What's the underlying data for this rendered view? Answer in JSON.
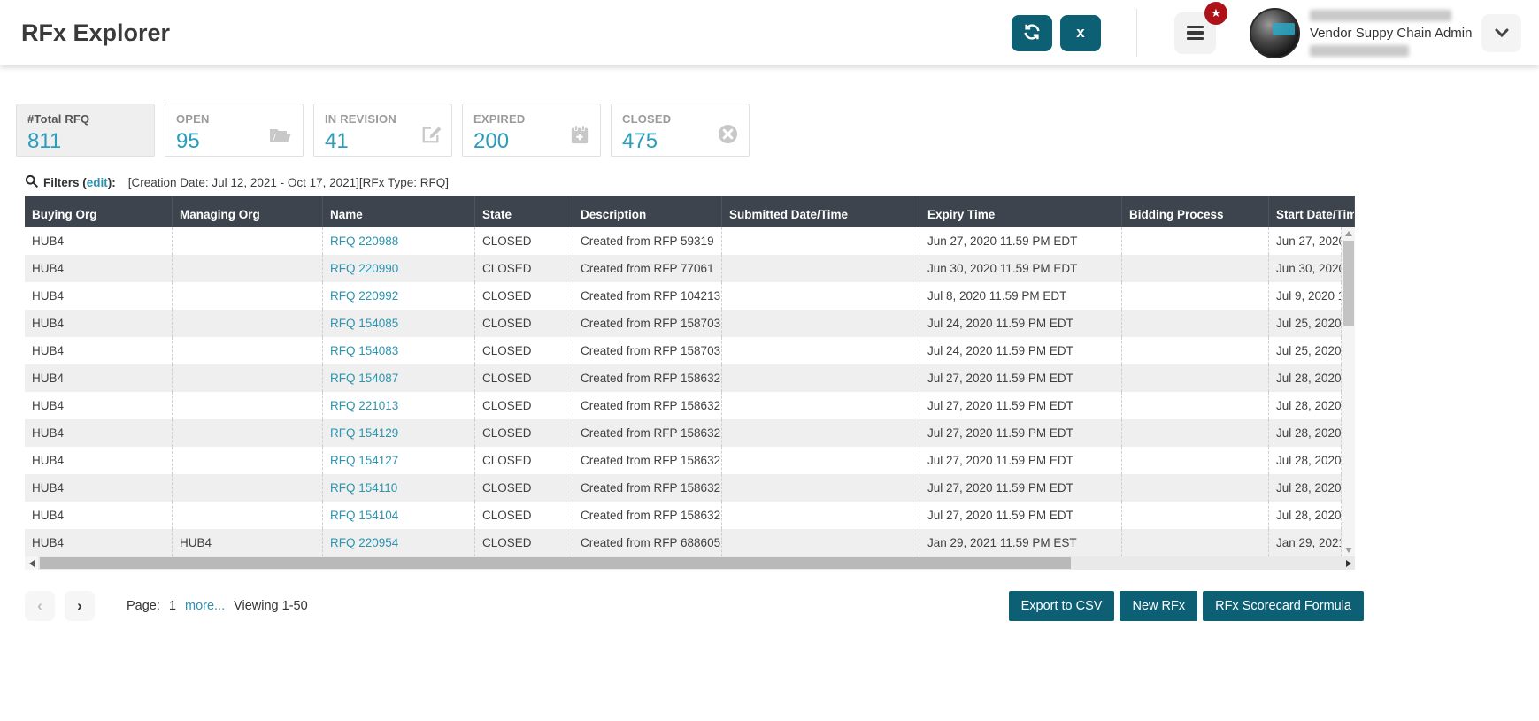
{
  "header": {
    "title": "RFx Explorer",
    "refresh_icon": "refresh-icon",
    "close_icon": "close-icon",
    "close_glyph": "x",
    "menu_icon": "hamburger-menu-icon",
    "badge_star": "★",
    "user_role": "Vendor Suppy Chain Admin",
    "chevron_icon": "chevron-down-icon"
  },
  "stats": {
    "cards": [
      {
        "label": "#Total RFQ",
        "value": "811",
        "icon": ""
      },
      {
        "label": "OPEN",
        "value": "95",
        "icon": "folder-open-icon"
      },
      {
        "label": "IN REVISION",
        "value": "41",
        "icon": "edit-icon"
      },
      {
        "label": "EXPIRED",
        "value": "200",
        "icon": "calendar-plus-icon"
      },
      {
        "label": "CLOSED",
        "value": "475",
        "icon": "circle-x-icon"
      }
    ]
  },
  "filters": {
    "search_icon": "search-icon",
    "label_open": "Filters (",
    "edit_link": "edit",
    "label_close": "):",
    "value": "[Creation Date: Jul 12, 2021 - Oct 17, 2021][RFx Type: RFQ]"
  },
  "table": {
    "columns": [
      "Buying Org",
      "Managing Org",
      "Name",
      "State",
      "Description",
      "Submitted Date/Time",
      "Expiry Time",
      "Bidding Process",
      "Start Date/Tim"
    ],
    "rows": [
      {
        "cells": [
          "HUB4",
          "",
          "RFQ 220988",
          "CLOSED",
          "Created from RFP 59319",
          "",
          "Jun 27, 2020 11.59 PM EDT",
          "",
          "Jun 27, 2020"
        ]
      },
      {
        "cells": [
          "HUB4",
          "",
          "RFQ 220990",
          "CLOSED",
          "Created from RFP 77061",
          "",
          "Jun 30, 2020 11.59 PM EDT",
          "",
          "Jun 30, 2020"
        ]
      },
      {
        "cells": [
          "HUB4",
          "",
          "RFQ 220992",
          "CLOSED",
          "Created from RFP 104213",
          "",
          "Jul 8, 2020 11.59 PM EDT",
          "",
          "Jul 9, 2020 1:"
        ]
      },
      {
        "cells": [
          "HUB4",
          "",
          "RFQ 154085",
          "CLOSED",
          "Created from RFP 158703",
          "",
          "Jul 24, 2020 11.59 PM EDT",
          "",
          "Jul 25, 2020"
        ]
      },
      {
        "cells": [
          "HUB4",
          "",
          "RFQ 154083",
          "CLOSED",
          "Created from RFP 158703",
          "",
          "Jul 24, 2020 11.59 PM EDT",
          "",
          "Jul 25, 2020"
        ]
      },
      {
        "cells": [
          "HUB4",
          "",
          "RFQ 154087",
          "CLOSED",
          "Created from RFP 158632",
          "",
          "Jul 27, 2020 11.59 PM EDT",
          "",
          "Jul 28, 2020"
        ]
      },
      {
        "cells": [
          "HUB4",
          "",
          "RFQ 221013",
          "CLOSED",
          "Created from RFP 158632",
          "",
          "Jul 27, 2020 11.59 PM EDT",
          "",
          "Jul 28, 2020"
        ]
      },
      {
        "cells": [
          "HUB4",
          "",
          "RFQ 154129",
          "CLOSED",
          "Created from RFP 158632",
          "",
          "Jul 27, 2020 11.59 PM EDT",
          "",
          "Jul 28, 2020"
        ]
      },
      {
        "cells": [
          "HUB4",
          "",
          "RFQ 154127",
          "CLOSED",
          "Created from RFP 158632",
          "",
          "Jul 27, 2020 11.59 PM EDT",
          "",
          "Jul 28, 2020"
        ]
      },
      {
        "cells": [
          "HUB4",
          "",
          "RFQ 154110",
          "CLOSED",
          "Created from RFP 158632",
          "",
          "Jul 27, 2020 11.59 PM EDT",
          "",
          "Jul 28, 2020"
        ]
      },
      {
        "cells": [
          "HUB4",
          "",
          "RFQ 154104",
          "CLOSED",
          "Created from RFP 158632",
          "",
          "Jul 27, 2020 11.59 PM EDT",
          "",
          "Jul 28, 2020"
        ]
      },
      {
        "cells": [
          "HUB4",
          "HUB4",
          "RFQ 220954",
          "CLOSED",
          "Created from RFP 688605",
          "",
          "Jan 29, 2021 11.59 PM EST",
          "",
          "Jan 29, 2021"
        ]
      }
    ]
  },
  "pagination": {
    "page_label": "Page:",
    "page_number": "1",
    "more_link": "more...",
    "viewing": "Viewing 1-50"
  },
  "actions": {
    "export_csv": "Export to CSV",
    "new_rfx": "New RFx",
    "scorecard": "RFx Scorecard Formula"
  },
  "colors": {
    "accent_teal": "#0d5f74",
    "link_teal": "#2b93af",
    "stat_value_teal": "#2b9cba",
    "table_header_dark": "#3d444d",
    "badge_red": "#ad1219",
    "row_alt": "#efefef"
  }
}
